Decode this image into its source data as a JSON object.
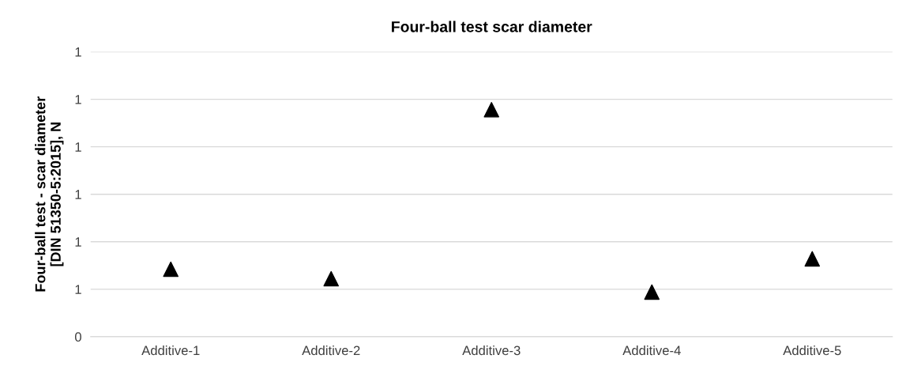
{
  "chart_data": {
    "type": "scatter",
    "title": "Four-ball test scar diameter",
    "ylabel": "Four-ball test - scar diameter\n[DIN 51350-5:2015], N",
    "categories": [
      "Additive-1",
      "Additive-2",
      "Additive-3",
      "Additive-4",
      "Additive-5"
    ],
    "series": [
      {
        "color": "#000000",
        "values": [
          0.521,
          0.511,
          0.689,
          0.497,
          0.532
        ]
      }
    ],
    "ylim": [
      0.45,
      0.75
    ],
    "yticks": [
      {
        "value": 0.45,
        "label": "0"
      },
      {
        "value": 0.5,
        "label": "1"
      },
      {
        "value": 0.55,
        "label": "1"
      },
      {
        "value": 0.6,
        "label": "1"
      },
      {
        "value": 0.65,
        "label": "1"
      },
      {
        "value": 0.7,
        "label": "1"
      },
      {
        "value": 0.75,
        "label": "1"
      }
    ],
    "grid": "y",
    "marker": "triangle",
    "legend": false
  }
}
